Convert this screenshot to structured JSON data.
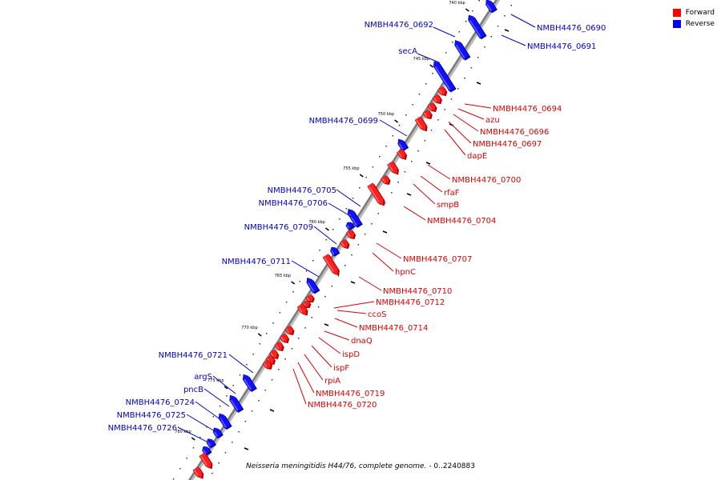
{
  "legend": {
    "forward_label": "Forward",
    "reverse_label": "Reverse",
    "forward_color": "#ff0000",
    "reverse_color": "#0000ff"
  },
  "caption": {
    "organism": "Neisseria meningitidis H44/76, complete genome.",
    "range": "- 0..2240883"
  },
  "ticks": [
    "740 kbp",
    "745 kbp",
    "750 kbp",
    "755 kbp",
    "760 kbp",
    "765 kbp",
    "770 kbp",
    "775 kbp",
    "780 kbp"
  ],
  "genes_reverse": [
    "NMBH4476_0690",
    "NMBH4476_0691",
    "NMBH4476_0692",
    "secA",
    "NMBH4476_0699",
    "NMBH4476_0705",
    "NMBH4476_0706",
    "NMBH4476_0709",
    "NMBH4476_0711",
    "NMBH4476_0721",
    "argS",
    "pncB",
    "NMBH4476_0724",
    "NMBH4476_0725",
    "NMBH4476_0726"
  ],
  "genes_forward": [
    "NMBH4476_0694",
    "azu",
    "NMBH4476_0696",
    "NMBH4476_0697",
    "dapE",
    "NMBH4476_0700",
    "rfaF",
    "smpB",
    "NMBH4476_0704",
    "NMBH4476_0707",
    "hpnC",
    "NMBH4476_0710",
    "NMBH4476_0712",
    "ccoS",
    "NMBH4476_0714",
    "dnaQ",
    "ispD",
    "ispF",
    "rpiA",
    "NMBH4476_0719",
    "NMBH4476_0720"
  ]
}
